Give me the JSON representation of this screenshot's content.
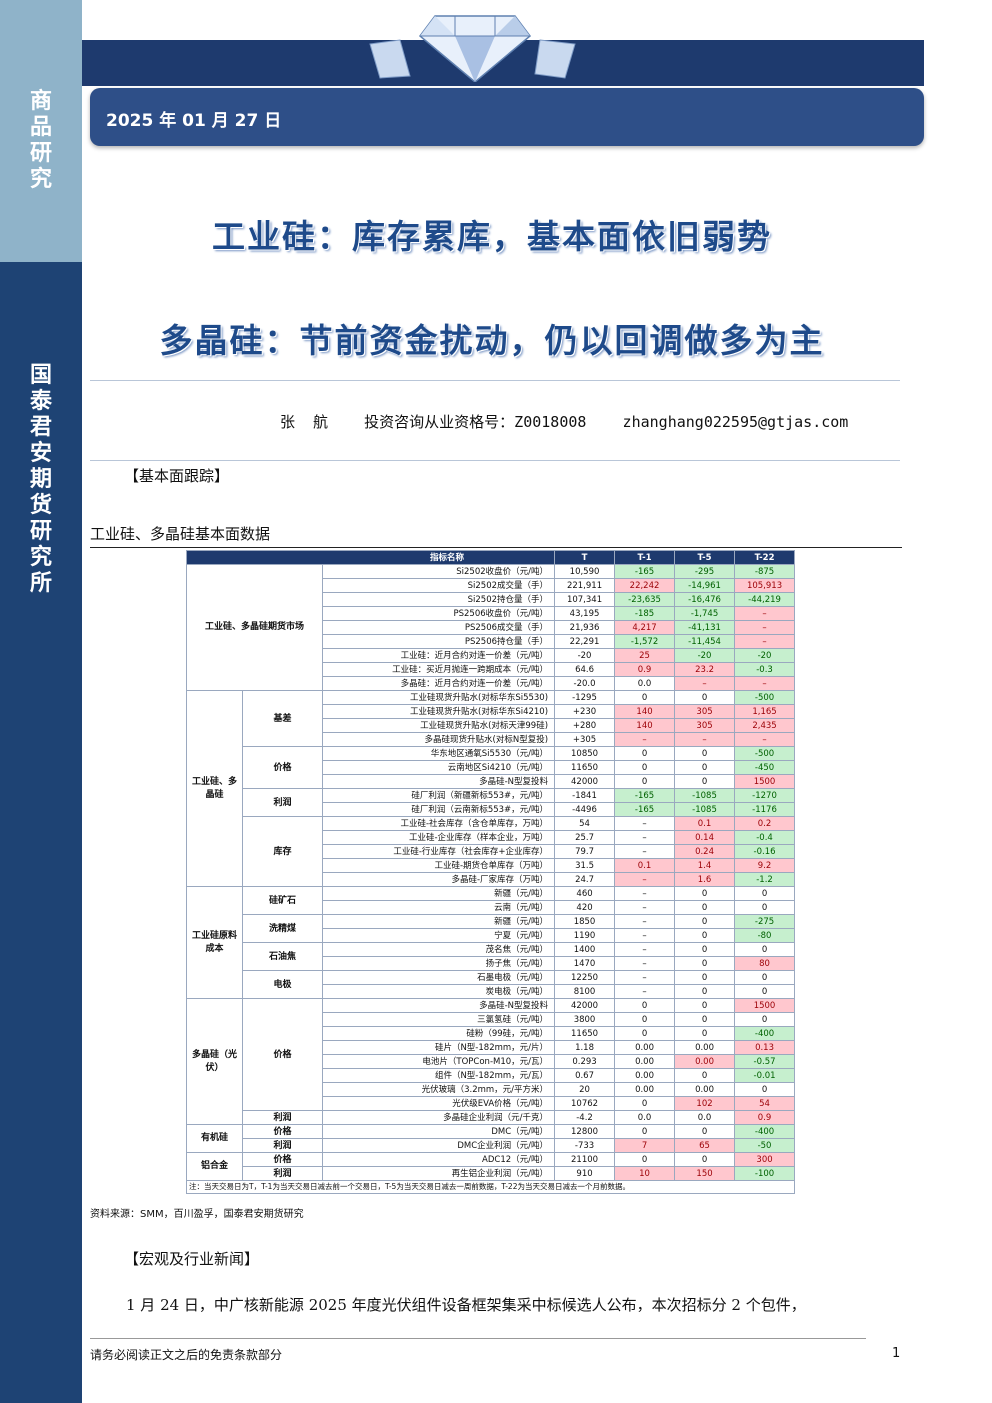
{
  "sidebar": {
    "top_label": "商品研究",
    "bottom_label": "国泰君安期货研究所"
  },
  "header": {
    "date": "2025 年 01 月 27 日"
  },
  "titles": {
    "line1": "工业硅：库存累库，基本面依旧弱势",
    "line2": "多晶硅：节前资金扰动，仍以回调做多为主"
  },
  "author": {
    "line": "张  航    投资咨询从业资格号：Z0018008    zhanghang022595@gtjas.com"
  },
  "sections": {
    "fundamentals": "【基本面跟踪】",
    "table_caption": "工业硅、多晶硅基本面数据",
    "source": "资料来源：SMM，百川盈孚，国泰君安期货研究",
    "news": "【宏观及行业新闻】"
  },
  "table": {
    "headers": [
      "指标名称",
      "T",
      "T-1",
      "T-5",
      "T-22"
    ],
    "groups": {
      "futures": "工业硅、多晶硅期货市场",
      "spot": "工业硅、多晶硅",
      "raw": "工业硅原料成本",
      "poly": "多晶硅（光伏）",
      "organic": "有机硅",
      "alu": "铝合金"
    },
    "subgroups": {
      "basis": "基差",
      "price": "价格",
      "profit": "利润",
      "inventory": "库存",
      "silica": "硅矿石",
      "coal": "洗精煤",
      "coke": "石油焦",
      "electrode": "电极",
      "poly_price": "价格",
      "poly_profit": "利润",
      "org_price": "价格",
      "org_profit": "利润",
      "alu_price": "价格",
      "alu_profit": "利润"
    },
    "rows": [
      {
        "name": "Si2502收盘价（元/吨）",
        "t": "10,590",
        "t1": "-165",
        "t5": "-295",
        "t22": "-875",
        "c1": "g",
        "c5": "g",
        "c22": "g"
      },
      {
        "name": "Si2502成交量（手）",
        "t": "221,911",
        "t1": "22,242",
        "t5": "-14,961",
        "t22": "105,913",
        "c1": "r",
        "c5": "g",
        "c22": "r"
      },
      {
        "name": "Si2502持仓量（手）",
        "t": "107,341",
        "t1": "-23,635",
        "t5": "-16,476",
        "t22": "-44,219",
        "c1": "g",
        "c5": "g",
        "c22": "g"
      },
      {
        "name": "PS2506收盘价（元/吨）",
        "t": "43,195",
        "t1": "-185",
        "t5": "-1,745",
        "t22": "–",
        "c1": "g",
        "c5": "g",
        "c22": "r"
      },
      {
        "name": "PS2506成交量（手）",
        "t": "21,936",
        "t1": "4,217",
        "t5": "-41,131",
        "t22": "–",
        "c1": "r",
        "c5": "g",
        "c22": "r"
      },
      {
        "name": "PS2506持仓量（手）",
        "t": "22,291",
        "t1": "-1,572",
        "t5": "-11,454",
        "t22": "–",
        "c1": "g",
        "c5": "g",
        "c22": "r"
      },
      {
        "name": "工业硅：近月合约对连一价差（元/吨）",
        "t": "-20",
        "t1": "25",
        "t5": "-20",
        "t22": "-20",
        "c1": "r",
        "c5": "g",
        "c22": "g"
      },
      {
        "name": "工业硅：买近月抛连一跨期成本（元/吨）",
        "t": "64.6",
        "t1": "0.9",
        "t5": "23.2",
        "t22": "-0.3",
        "c1": "r",
        "c5": "r",
        "c22": "g"
      },
      {
        "name": "多晶硅：近月合约对连一价差（元/吨）",
        "t": "-20.0",
        "t1": "0.0",
        "t5": "–",
        "t22": "–",
        "c1": "",
        "c5": "r",
        "c22": "r"
      },
      {
        "name": "工业硅现货升贴水(对标华东Si5530)",
        "t": "-1295",
        "t1": "0",
        "t5": "0",
        "t22": "-500",
        "c1": "",
        "c5": "",
        "c22": "g"
      },
      {
        "name": "工业硅现货升贴水(对标华东Si4210)",
        "t": "+230",
        "t1": "140",
        "t5": "305",
        "t22": "1,165",
        "c1": "r",
        "c5": "r",
        "c22": "r"
      },
      {
        "name": "工业硅现货升贴水(对标天津99硅)",
        "t": "+280",
        "t1": "140",
        "t5": "305",
        "t22": "2,435",
        "c1": "r",
        "c5": "r",
        "c22": "r"
      },
      {
        "name": "多晶硅现货升贴水(对标N型复投)",
        "t": "+305",
        "t1": "–",
        "t5": "–",
        "t22": "–",
        "c1": "r",
        "c5": "r",
        "c22": "r"
      },
      {
        "name": "华东地区通氧Si5530（元/吨）",
        "t": "10850",
        "t1": "0",
        "t5": "0",
        "t22": "-500",
        "c1": "",
        "c5": "",
        "c22": "g"
      },
      {
        "name": "云南地区Si4210（元/吨）",
        "t": "11650",
        "t1": "0",
        "t5": "0",
        "t22": "-450",
        "c1": "",
        "c5": "",
        "c22": "g"
      },
      {
        "name": "多晶硅-N型复投料",
        "t": "42000",
        "t1": "0",
        "t5": "0",
        "t22": "1500",
        "c1": "",
        "c5": "",
        "c22": "r"
      },
      {
        "name": "硅厂利润（新疆新标553#，元/吨）",
        "t": "-1841",
        "t1": "-165",
        "t5": "-1085",
        "t22": "-1270",
        "c1": "g",
        "c5": "g",
        "c22": "g"
      },
      {
        "name": "硅厂利润（云南新标553#，元/吨）",
        "t": "-4496",
        "t1": "-165",
        "t5": "-1085",
        "t22": "-1176",
        "c1": "g",
        "c5": "g",
        "c22": "g"
      },
      {
        "name": "工业硅-社会库存（含仓单库存，万吨）",
        "t": "54",
        "t1": "–",
        "t5": "0.1",
        "t22": "0.2",
        "c1": "",
        "c5": "r",
        "c22": "r"
      },
      {
        "name": "工业硅-企业库存（样本企业，万吨）",
        "t": "25.7",
        "t1": "–",
        "t5": "0.14",
        "t22": "-0.4",
        "c1": "",
        "c5": "r",
        "c22": "g"
      },
      {
        "name": "工业硅-行业库存（社会库存+企业库存）",
        "t": "79.7",
        "t1": "–",
        "t5": "0.24",
        "t22": "-0.16",
        "c1": "",
        "c5": "r",
        "c22": "g"
      },
      {
        "name": "工业硅-期货仓单库存（万吨）",
        "t": "31.5",
        "t1": "0.1",
        "t5": "1.4",
        "t22": "9.2",
        "c1": "r",
        "c5": "r",
        "c22": "r"
      },
      {
        "name": "多晶硅-厂家库存（万吨）",
        "t": "24.7",
        "t1": "–",
        "t5": "1.6",
        "t22": "-1.2",
        "c1": "r",
        "c5": "r",
        "c22": "g"
      },
      {
        "name": "新疆（元/吨）",
        "t": "460",
        "t1": "–",
        "t5": "0",
        "t22": "0",
        "c1": "",
        "c5": "",
        "c22": ""
      },
      {
        "name": "云南（元/吨）",
        "t": "420",
        "t1": "–",
        "t5": "0",
        "t22": "0",
        "c1": "",
        "c5": "",
        "c22": ""
      },
      {
        "name": "新疆（元/吨）",
        "t": "1850",
        "t1": "–",
        "t5": "0",
        "t22": "-275",
        "c1": "",
        "c5": "",
        "c22": "g"
      },
      {
        "name": "宁夏（元/吨）",
        "t": "1190",
        "t1": "–",
        "t5": "0",
        "t22": "-80",
        "c1": "",
        "c5": "",
        "c22": "g"
      },
      {
        "name": "茂名焦（元/吨）",
        "t": "1400",
        "t1": "–",
        "t5": "0",
        "t22": "0",
        "c1": "",
        "c5": "",
        "c22": ""
      },
      {
        "name": "扬子焦（元/吨）",
        "t": "1470",
        "t1": "–",
        "t5": "0",
        "t22": "80",
        "c1": "",
        "c5": "",
        "c22": "r"
      },
      {
        "name": "石墨电极（元/吨）",
        "t": "12250",
        "t1": "–",
        "t5": "0",
        "t22": "0",
        "c1": "",
        "c5": "",
        "c22": ""
      },
      {
        "name": "炭电极（元/吨）",
        "t": "8100",
        "t1": "–",
        "t5": "0",
        "t22": "0",
        "c1": "",
        "c5": "",
        "c22": ""
      },
      {
        "name": "多晶硅-N型复投料",
        "t": "42000",
        "t1": "0",
        "t5": "0",
        "t22": "1500",
        "c1": "",
        "c5": "",
        "c22": "r"
      },
      {
        "name": "三氯氢硅（元/吨）",
        "t": "3800",
        "t1": "0",
        "t5": "0",
        "t22": "0",
        "c1": "",
        "c5": "",
        "c22": ""
      },
      {
        "name": "硅粉（99硅，元/吨）",
        "t": "11650",
        "t1": "0",
        "t5": "0",
        "t22": "-400",
        "c1": "",
        "c5": "",
        "c22": "g"
      },
      {
        "name": "硅片（N型-182mm，元/片）",
        "t": "1.18",
        "t1": "0.00",
        "t5": "0.00",
        "t22": "0.13",
        "c1": "",
        "c5": "",
        "c22": "r"
      },
      {
        "name": "电池片（TOPCon-M10，元/瓦）",
        "t": "0.293",
        "t1": "0.00",
        "t5": "0.00",
        "t22": "-0.57",
        "c1": "",
        "c5": "r",
        "c22": "g"
      },
      {
        "name": "组件（N型-182mm，元/瓦）",
        "t": "0.67",
        "t1": "0.00",
        "t5": "0",
        "t22": "-0.01",
        "c1": "",
        "c5": "",
        "c22": "g"
      },
      {
        "name": "光伏玻璃（3.2mm，元/平方米）",
        "t": "20",
        "t1": "0.00",
        "t5": "0.00",
        "t22": "0",
        "c1": "",
        "c5": "",
        "c22": ""
      },
      {
        "name": "光伏级EVA价格（元/吨）",
        "t": "10762",
        "t1": "0",
        "t5": "102",
        "t22": "54",
        "c1": "",
        "c5": "r",
        "c22": "r"
      },
      {
        "name": "多晶硅企业利润（元/千克）",
        "t": "-4.2",
        "t1": "0.0",
        "t5": "0.0",
        "t22": "0.9",
        "c1": "",
        "c5": "",
        "c22": "r"
      },
      {
        "name": "DMC（元/吨）",
        "t": "12800",
        "t1": "0",
        "t5": "0",
        "t22": "-400",
        "c1": "",
        "c5": "",
        "c22": "g"
      },
      {
        "name": "DMC企业利润（元/吨）",
        "t": "-733",
        "t1": "7",
        "t5": "65",
        "t22": "-50",
        "c1": "r",
        "c5": "r",
        "c22": "g"
      },
      {
        "name": "ADC12（元/吨）",
        "t": "21100",
        "t1": "0",
        "t5": "0",
        "t22": "300",
        "c1": "",
        "c5": "",
        "c22": "r"
      },
      {
        "name": "再生铝企业利润（元/吨）",
        "t": "910",
        "t1": "10",
        "t5": "150",
        "t22": "-100",
        "c1": "r",
        "c5": "r",
        "c22": "g"
      }
    ],
    "note": "注：当天交易日为T，T-1为当天交易日减去前一个交易日，T-5为当天交易日减去一周前数据，T-22为当天交易日减去一个月前数据。"
  },
  "news": {
    "paragraph": "1 月 24 日，中广核新能源 2025 年度光伏组件设备框架集采中标候选人公布，本次招标分 2 个包件，"
  },
  "footer": {
    "disclaimer": "请务必阅读正文之后的免责条款部分",
    "page": "1"
  },
  "colors": {
    "navy": "#1e3a6e",
    "sidebar_light": "#8fb3c9",
    "sidebar_dark": "#1e4374",
    "title_blue": "#1e4a8a",
    "green_cell": "#c6efce",
    "red_cell": "#ffc7ce"
  },
  "icons": [
    "diamond-logo-icon"
  ]
}
